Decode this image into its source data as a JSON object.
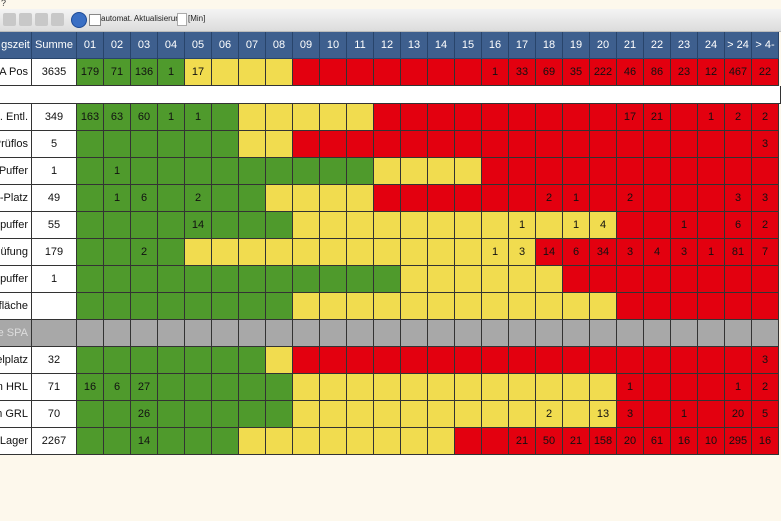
{
  "toolbar": {
    "menu": "?",
    "auto_refresh": "automat. Aktualisierung",
    "unit": "[Min]"
  },
  "table": {
    "columns": [
      "gszeit",
      "Summe",
      "01",
      "02",
      "03",
      "04",
      "05",
      "06",
      "07",
      "08",
      "09",
      "10",
      "11",
      "12",
      "13",
      "14",
      "15",
      "16",
      "17",
      "18",
      "19",
      "20",
      "21",
      "22",
      "23",
      "24",
      "> 24",
      "> 4-"
    ],
    "rows": [
      {
        "label": "LA Pos",
        "sum": 3635,
        "cells": [
          179,
          71,
          136,
          1,
          17,
          null,
          null,
          null,
          null,
          null,
          null,
          null,
          null,
          null,
          null,
          1,
          33,
          69,
          35,
          222,
          46,
          86,
          23,
          12,
          467,
          22
        ],
        "colors": [
          "#4f9a2c",
          "#4f9a2c",
          "#4f9a2c",
          "#4f9a2c",
          "#f1dc4f",
          "#f1dc4f",
          "#f1dc4f",
          "#f1dc4f",
          "#e3000f",
          "#e3000f",
          "#e3000f",
          "#e3000f",
          "#e3000f",
          "#e3000f",
          "#e3000f",
          "#e3000f",
          "#e3000f",
          "#e3000f",
          "#e3000f",
          "#e3000f",
          "#e3000f",
          "#e3000f",
          "#e3000f",
          "#e3000f",
          "#e3000f",
          "#e3000f"
        ]
      },
      {
        "label": ". Entl.",
        "sum": 349,
        "cells": [
          163,
          63,
          60,
          1,
          1,
          null,
          null,
          null,
          null,
          null,
          null,
          null,
          null,
          null,
          null,
          null,
          null,
          null,
          null,
          null,
          17,
          21,
          null,
          1,
          2,
          2
        ],
        "colors": [
          "#4f9a2c",
          "#4f9a2c",
          "#4f9a2c",
          "#4f9a2c",
          "#4f9a2c",
          "#4f9a2c",
          "#f1dc4f",
          "#f1dc4f",
          "#f1dc4f",
          "#f1dc4f",
          "#f1dc4f",
          "#e3000f",
          "#e3000f",
          "#e3000f",
          "#e3000f",
          "#e3000f",
          "#e3000f",
          "#e3000f",
          "#e3000f",
          "#e3000f",
          "#e3000f",
          "#e3000f",
          "#e3000f",
          "#e3000f",
          "#e3000f",
          "#e3000f"
        ]
      },
      {
        "label": "Prüflos",
        "sum": 5,
        "cells": [
          null,
          null,
          null,
          null,
          null,
          null,
          null,
          null,
          null,
          null,
          null,
          null,
          null,
          null,
          null,
          null,
          null,
          null,
          null,
          null,
          null,
          null,
          null,
          null,
          null,
          3
        ],
        "colors": [
          "#4f9a2c",
          "#4f9a2c",
          "#4f9a2c",
          "#4f9a2c",
          "#4f9a2c",
          "#4f9a2c",
          "#f1dc4f",
          "#f1dc4f",
          "#e3000f",
          "#e3000f",
          "#e3000f",
          "#e3000f",
          "#e3000f",
          "#e3000f",
          "#e3000f",
          "#e3000f",
          "#e3000f",
          "#e3000f",
          "#e3000f",
          "#e3000f",
          "#e3000f",
          "#e3000f",
          "#e3000f",
          "#e3000f",
          "#e3000f",
          "#e3000f"
        ]
      },
      {
        "label": "Puffer",
        "sum": 1,
        "cells": [
          null,
          1,
          null,
          null,
          null,
          null,
          null,
          null,
          null,
          null,
          null,
          null,
          null,
          null,
          null,
          null,
          null,
          null,
          null,
          null,
          null,
          null,
          null,
          null,
          null,
          null
        ],
        "colors": [
          "#4f9a2c",
          "#4f9a2c",
          "#4f9a2c",
          "#4f9a2c",
          "#4f9a2c",
          "#4f9a2c",
          "#4f9a2c",
          "#4f9a2c",
          "#4f9a2c",
          "#4f9a2c",
          "#4f9a2c",
          "#f1dc4f",
          "#f1dc4f",
          "#f1dc4f",
          "#f1dc4f",
          "#e3000f",
          "#e3000f",
          "#e3000f",
          "#e3000f",
          "#e3000f",
          "#e3000f",
          "#e3000f",
          "#e3000f",
          "#e3000f",
          "#e3000f",
          "#e3000f"
        ]
      },
      {
        "label": "-Platz",
        "sum": 49,
        "cells": [
          null,
          1,
          6,
          null,
          2,
          null,
          null,
          null,
          null,
          null,
          null,
          null,
          null,
          null,
          null,
          null,
          null,
          2,
          1,
          null,
          2,
          null,
          null,
          null,
          3,
          3
        ],
        "colors": [
          "#4f9a2c",
          "#4f9a2c",
          "#4f9a2c",
          "#4f9a2c",
          "#4f9a2c",
          "#4f9a2c",
          "#4f9a2c",
          "#f1dc4f",
          "#f1dc4f",
          "#f1dc4f",
          "#f1dc4f",
          "#e3000f",
          "#e3000f",
          "#e3000f",
          "#e3000f",
          "#e3000f",
          "#e3000f",
          "#e3000f",
          "#e3000f",
          "#e3000f",
          "#e3000f",
          "#e3000f",
          "#e3000f",
          "#e3000f",
          "#e3000f",
          "#e3000f"
        ]
      },
      {
        "label": "puffer",
        "sum": 55,
        "cells": [
          null,
          null,
          null,
          null,
          14,
          null,
          null,
          null,
          null,
          null,
          null,
          null,
          null,
          null,
          null,
          null,
          1,
          null,
          1,
          4,
          null,
          null,
          1,
          null,
          6,
          2
        ],
        "colors": [
          "#4f9a2c",
          "#4f9a2c",
          "#4f9a2c",
          "#4f9a2c",
          "#4f9a2c",
          "#4f9a2c",
          "#4f9a2c",
          "#4f9a2c",
          "#f1dc4f",
          "#f1dc4f",
          "#f1dc4f",
          "#f1dc4f",
          "#f1dc4f",
          "#f1dc4f",
          "#f1dc4f",
          "#f1dc4f",
          "#f1dc4f",
          "#f1dc4f",
          "#f1dc4f",
          "#f1dc4f",
          "#e3000f",
          "#e3000f",
          "#e3000f",
          "#e3000f",
          "#e3000f",
          "#e3000f"
        ]
      },
      {
        "label": "üfung",
        "sum": 179,
        "cells": [
          null,
          null,
          2,
          null,
          null,
          null,
          null,
          null,
          null,
          null,
          null,
          null,
          null,
          null,
          null,
          1,
          3,
          14,
          6,
          34,
          3,
          4,
          3,
          1,
          81,
          7
        ],
        "colors": [
          "#4f9a2c",
          "#4f9a2c",
          "#4f9a2c",
          "#4f9a2c",
          "#f1dc4f",
          "#f1dc4f",
          "#f1dc4f",
          "#f1dc4f",
          "#f1dc4f",
          "#f1dc4f",
          "#f1dc4f",
          "#f1dc4f",
          "#f1dc4f",
          "#f1dc4f",
          "#f1dc4f",
          "#f1dc4f",
          "#f1dc4f",
          "#e3000f",
          "#e3000f",
          "#e3000f",
          "#e3000f",
          "#e3000f",
          "#e3000f",
          "#e3000f",
          "#e3000f",
          "#e3000f"
        ]
      },
      {
        "label": "puffer",
        "sum": 1,
        "cells": [
          null,
          null,
          null,
          null,
          null,
          null,
          null,
          null,
          null,
          null,
          null,
          null,
          null,
          null,
          null,
          null,
          null,
          null,
          null,
          null,
          null,
          null,
          null,
          null,
          null,
          null
        ],
        "colors": [
          "#4f9a2c",
          "#4f9a2c",
          "#4f9a2c",
          "#4f9a2c",
          "#4f9a2c",
          "#4f9a2c",
          "#4f9a2c",
          "#4f9a2c",
          "#4f9a2c",
          "#4f9a2c",
          "#4f9a2c",
          "#4f9a2c",
          "#f1dc4f",
          "#f1dc4f",
          "#f1dc4f",
          "#f1dc4f",
          "#f1dc4f",
          "#f1dc4f",
          "#e3000f",
          "#e3000f",
          "#e3000f",
          "#e3000f",
          "#e3000f",
          "#e3000f",
          "#e3000f",
          "#e3000f"
        ]
      },
      {
        "label": "fläche",
        "sum": null,
        "cells": [
          null,
          null,
          null,
          null,
          null,
          null,
          null,
          null,
          null,
          null,
          null,
          null,
          null,
          null,
          null,
          null,
          null,
          null,
          null,
          null,
          null,
          null,
          null,
          null,
          null,
          null
        ],
        "colors": [
          "#4f9a2c",
          "#4f9a2c",
          "#4f9a2c",
          "#4f9a2c",
          "#4f9a2c",
          "#4f9a2c",
          "#4f9a2c",
          "#4f9a2c",
          "#f1dc4f",
          "#f1dc4f",
          "#f1dc4f",
          "#f1dc4f",
          "#f1dc4f",
          "#f1dc4f",
          "#f1dc4f",
          "#f1dc4f",
          "#f1dc4f",
          "#f1dc4f",
          "#f1dc4f",
          "#f1dc4f",
          "#e3000f",
          "#e3000f",
          "#e3000f",
          "#e3000f",
          "#e3000f",
          "#e3000f"
        ]
      },
      {
        "label": "e SPA",
        "sum": null,
        "row_color": "#a8a8a8",
        "cells": [
          null,
          null,
          null,
          null,
          null,
          null,
          null,
          null,
          null,
          null,
          null,
          null,
          null,
          null,
          null,
          null,
          null,
          null,
          null,
          null,
          null,
          null,
          null,
          null,
          null,
          null
        ],
        "colors": [
          "#a8a8a8",
          "#a8a8a8",
          "#a8a8a8",
          "#a8a8a8",
          "#a8a8a8",
          "#a8a8a8",
          "#a8a8a8",
          "#a8a8a8",
          "#a8a8a8",
          "#a8a8a8",
          "#a8a8a8",
          "#a8a8a8",
          "#a8a8a8",
          "#a8a8a8",
          "#a8a8a8",
          "#a8a8a8",
          "#a8a8a8",
          "#a8a8a8",
          "#a8a8a8",
          "#a8a8a8",
          "#a8a8a8",
          "#a8a8a8",
          "#a8a8a8",
          "#a8a8a8",
          "#a8a8a8",
          "#a8a8a8"
        ]
      },
      {
        "label": "elplatz",
        "sum": 32,
        "cells": [
          null,
          null,
          null,
          null,
          null,
          null,
          null,
          null,
          null,
          null,
          null,
          null,
          null,
          null,
          null,
          null,
          null,
          null,
          null,
          null,
          null,
          null,
          null,
          null,
          null,
          3
        ],
        "colors": [
          "#4f9a2c",
          "#4f9a2c",
          "#4f9a2c",
          "#4f9a2c",
          "#4f9a2c",
          "#4f9a2c",
          "#4f9a2c",
          "#f1dc4f",
          "#e3000f",
          "#e3000f",
          "#e3000f",
          "#e3000f",
          "#e3000f",
          "#e3000f",
          "#e3000f",
          "#e3000f",
          "#e3000f",
          "#e3000f",
          "#e3000f",
          "#e3000f",
          "#e3000f",
          "#e3000f",
          "#e3000f",
          "#e3000f",
          "#e3000f",
          "#e3000f"
        ]
      },
      {
        "label": "m HRL",
        "sum": 71,
        "cells": [
          16,
          6,
          27,
          null,
          null,
          null,
          null,
          null,
          null,
          null,
          null,
          null,
          null,
          null,
          null,
          null,
          null,
          null,
          null,
          null,
          1,
          null,
          null,
          null,
          1,
          2
        ],
        "colors": [
          "#4f9a2c",
          "#4f9a2c",
          "#4f9a2c",
          "#4f9a2c",
          "#4f9a2c",
          "#4f9a2c",
          "#4f9a2c",
          "#4f9a2c",
          "#f1dc4f",
          "#f1dc4f",
          "#f1dc4f",
          "#f1dc4f",
          "#f1dc4f",
          "#f1dc4f",
          "#f1dc4f",
          "#f1dc4f",
          "#f1dc4f",
          "#f1dc4f",
          "#f1dc4f",
          "#f1dc4f",
          "#e3000f",
          "#e3000f",
          "#e3000f",
          "#e3000f",
          "#e3000f",
          "#e3000f"
        ]
      },
      {
        "label": "m GRL",
        "sum": 70,
        "cells": [
          null,
          null,
          26,
          null,
          null,
          null,
          null,
          null,
          null,
          null,
          null,
          null,
          null,
          null,
          null,
          null,
          null,
          2,
          null,
          13,
          3,
          null,
          1,
          null,
          20,
          5
        ],
        "colors": [
          "#4f9a2c",
          "#4f9a2c",
          "#4f9a2c",
          "#4f9a2c",
          "#4f9a2c",
          "#4f9a2c",
          "#4f9a2c",
          "#4f9a2c",
          "#f1dc4f",
          "#f1dc4f",
          "#f1dc4f",
          "#f1dc4f",
          "#f1dc4f",
          "#f1dc4f",
          "#f1dc4f",
          "#f1dc4f",
          "#f1dc4f",
          "#f1dc4f",
          "#f1dc4f",
          "#f1dc4f",
          "#e3000f",
          "#e3000f",
          "#e3000f",
          "#e3000f",
          "#e3000f",
          "#e3000f"
        ]
      },
      {
        "label": "Lager",
        "sum": 2267,
        "cells": [
          null,
          null,
          14,
          null,
          null,
          null,
          null,
          null,
          null,
          null,
          null,
          null,
          null,
          null,
          null,
          null,
          21,
          50,
          21,
          158,
          20,
          61,
          16,
          10,
          295,
          16
        ],
        "colors": [
          "#4f9a2c",
          "#4f9a2c",
          "#4f9a2c",
          "#4f9a2c",
          "#4f9a2c",
          "#4f9a2c",
          "#f1dc4f",
          "#f1dc4f",
          "#f1dc4f",
          "#f1dc4f",
          "#f1dc4f",
          "#f1dc4f",
          "#f1dc4f",
          "#f1dc4f",
          "#e3000f",
          "#e3000f",
          "#e3000f",
          "#e3000f",
          "#e3000f",
          "#e3000f",
          "#e3000f",
          "#e3000f",
          "#e3000f",
          "#e3000f",
          "#e3000f",
          "#e3000f"
        ]
      }
    ]
  }
}
